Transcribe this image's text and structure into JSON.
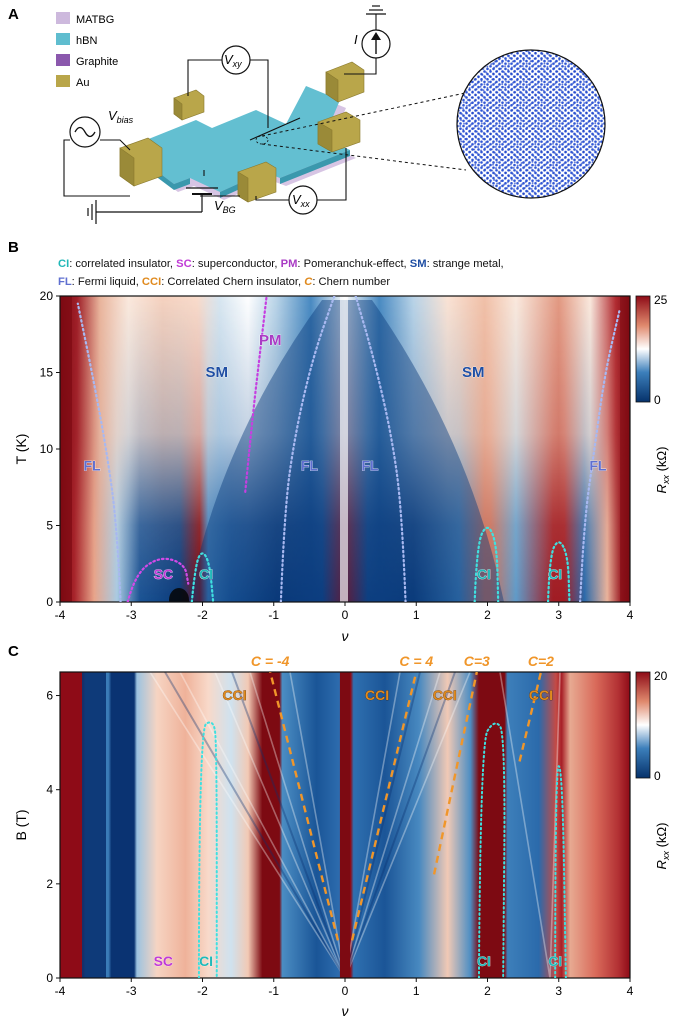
{
  "panels": {
    "a": {
      "label": "A",
      "legend": [
        "MATBG",
        "hBN",
        "Graphite",
        "Au"
      ],
      "legend_colors": [
        "#cdb9dd",
        "#5fbdcf",
        "#8b58ad",
        "#b9a64a"
      ],
      "circuit": {
        "current": "I",
        "vbias": "V",
        "vbias_sub": "bias",
        "vxy": "V",
        "vxy_sub": "xy",
        "vxx": "V",
        "vxx_sub": "xx",
        "vbg": "V",
        "vbg_sub": "BG"
      }
    },
    "b": {
      "label": "B",
      "caption_line1": [
        {
          "t": "CI",
          "c": "#21b8b8",
          "b": true
        },
        {
          "t": ": correlated insulator, ",
          "c": "#111",
          "b": false
        },
        {
          "t": "SC",
          "c": "#c03ad6",
          "b": true
        },
        {
          "t": ": superconductor, ",
          "c": "#111",
          "b": false
        },
        {
          "t": "PM",
          "c": "#a93bc4",
          "b": true
        },
        {
          "t": ": Pomeranchuk-effect, ",
          "c": "#111",
          "b": false
        },
        {
          "t": "SM",
          "c": "#1f4ea3",
          "b": true
        },
        {
          "t": ": strange metal,",
          "c": "#111",
          "b": false
        }
      ],
      "caption_line2": [
        {
          "t": "FL",
          "c": "#5f6fd0",
          "b": true
        },
        {
          "t": ": Fermi liquid, ",
          "c": "#111",
          "b": false
        },
        {
          "t": "CCI",
          "c": "#e08a1e",
          "b": true
        },
        {
          "t": ": Correlated Chern insulator, ",
          "c": "#111",
          "b": false
        },
        {
          "t": "C",
          "c": "#e08a1e",
          "b": true
        },
        {
          "t": ": Chern number",
          "c": "#111",
          "b": false
        }
      ],
      "ylabel": "T (K)",
      "xlabel": "ν",
      "colorbar": {
        "max": "25",
        "min": "0",
        "label": "R",
        "label_sub": "xx",
        "unit": " (kΩ)"
      }
    },
    "c": {
      "label": "C",
      "ylabel": "B (T)",
      "xlabel": "ν",
      "colorbar": {
        "max": "20",
        "min": "0",
        "label": "R",
        "label_sub": "xx",
        "unit": " (kΩ)"
      }
    }
  },
  "chart_data": [
    {
      "type": "heatmap",
      "panel": "B",
      "x": {
        "min": -4,
        "max": 4,
        "ticks": [
          -4,
          -3,
          -2,
          -1,
          0,
          1,
          2,
          3,
          4
        ]
      },
      "y": {
        "min": 0,
        "max": 20,
        "ticks": [
          0,
          5,
          10,
          15,
          20
        ]
      },
      "xlabel": "ν",
      "ylabel": "T (K)",
      "colorscale": {
        "min": 0,
        "max": 25,
        "unit": "kΩ",
        "colors": [
          "#06326b",
          "#3c7fbb",
          "#ffffff",
          "#e08a6e",
          "#8e0b17"
        ]
      },
      "resistive_features": [
        {
          "nu": -4,
          "width": 0.18,
          "max_T": 20,
          "kind": "band insulator"
        },
        {
          "nu": -2,
          "width": 0.1,
          "max_T": 3,
          "kind": "CI"
        },
        {
          "nu": 0,
          "width": 0.04,
          "max_T": 20,
          "kind": "CNP"
        },
        {
          "nu": 2,
          "width": 0.08,
          "max_T": 5,
          "kind": "CI"
        },
        {
          "nu": 3,
          "width": 0.1,
          "max_T": 20,
          "kind": "CI"
        },
        {
          "nu": 4,
          "width": 0.14,
          "max_T": 20,
          "kind": "band insulator"
        }
      ],
      "annotations": [
        {
          "text": "SM",
          "x": -1.8,
          "y": 14.7,
          "color": "#1f4ea3"
        },
        {
          "text": "SM",
          "x": 1.8,
          "y": 14.7,
          "color": "#1f4ea3"
        },
        {
          "text": "PM",
          "x": -1.05,
          "y": 16.8,
          "color": "#a93bc4"
        },
        {
          "text": "FL",
          "x": -3.55,
          "y": 8.6,
          "color": "#5f6fd0"
        },
        {
          "text": "FL",
          "x": -0.5,
          "y": 8.6,
          "color": "#5f6fd0"
        },
        {
          "text": "FL",
          "x": 0.35,
          "y": 8.6,
          "color": "#5f6fd0"
        },
        {
          "text": "FL",
          "x": 3.55,
          "y": 8.6,
          "color": "#5f6fd0"
        },
        {
          "text": "SC",
          "x": -2.55,
          "y": 1.5,
          "color": "#c03ad6"
        },
        {
          "text": "CI",
          "x": -1.95,
          "y": 1.5,
          "color": "#21b8b8"
        },
        {
          "text": "CI",
          "x": 1.95,
          "y": 1.5,
          "color": "#21b8b8"
        },
        {
          "text": "CI",
          "x": 2.95,
          "y": 1.5,
          "color": "#21b8b8"
        }
      ],
      "boundaries": [
        {
          "name": "FL left",
          "points": [
            [
              -3.15,
              0
            ],
            [
              -3.2,
              5
            ],
            [
              -3.35,
              10
            ],
            [
              -3.55,
              15
            ],
            [
              -3.75,
              19.5
            ]
          ]
        },
        {
          "name": "FL inner left",
          "points": [
            [
              -0.9,
              0
            ],
            [
              -0.85,
              6
            ],
            [
              -0.7,
              11
            ],
            [
              -0.45,
              16
            ],
            [
              -0.15,
              20
            ]
          ]
        },
        {
          "name": "FL inner right",
          "points": [
            [
              0.85,
              0
            ],
            [
              0.8,
              6
            ],
            [
              0.65,
              11
            ],
            [
              0.4,
              16
            ],
            [
              0.15,
              20
            ]
          ]
        },
        {
          "name": "FL right",
          "points": [
            [
              3.3,
              0
            ],
            [
              3.35,
              5
            ],
            [
              3.5,
              10
            ],
            [
              3.65,
              15
            ],
            [
              3.85,
              19
            ]
          ]
        },
        {
          "name": "PM",
          "points": [
            [
              -1.4,
              7.2
            ],
            [
              -1.3,
              12
            ],
            [
              -1.2,
              16
            ],
            [
              -1.1,
              20
            ]
          ]
        },
        {
          "name": "SC dome",
          "points": [
            [
              -3.05,
              0
            ],
            [
              -2.95,
              1.8
            ],
            [
              -2.6,
              3
            ],
            [
              -2.25,
              2.5
            ],
            [
              -2.2,
              1.2
            ]
          ]
        },
        {
          "name": "CI -2 dome",
          "points": [
            [
              -2.15,
              0
            ],
            [
              -2.1,
              2.5
            ],
            [
              -2.0,
              3.4
            ],
            [
              -1.9,
              2.5
            ],
            [
              -1.85,
              0
            ]
          ]
        },
        {
          "name": "CI 2 dome",
          "points": [
            [
              1.82,
              0
            ],
            [
              1.85,
              3.8
            ],
            [
              2.0,
              5.2
            ],
            [
              2.13,
              3.8
            ],
            [
              2.15,
              0
            ]
          ]
        },
        {
          "name": "CI 3 dome",
          "points": [
            [
              2.85,
              0
            ],
            [
              2.87,
              3
            ],
            [
              3.0,
              4.2
            ],
            [
              3.13,
              3
            ],
            [
              3.15,
              0
            ]
          ]
        }
      ]
    },
    {
      "type": "heatmap",
      "panel": "C",
      "x": {
        "min": -4,
        "max": 4,
        "ticks": [
          -4,
          -3,
          -2,
          -1,
          0,
          1,
          2,
          3,
          4
        ]
      },
      "y": {
        "min": 0,
        "max": 6.5,
        "ticks": [
          0,
          2,
          4,
          6
        ]
      },
      "xlabel": "ν",
      "ylabel": "B (T)",
      "colorscale": {
        "min": 0,
        "max": 20,
        "unit": "kΩ",
        "colors": [
          "#06326b",
          "#3c7fbb",
          "#ffffff",
          "#e08a6e",
          "#8e0b17"
        ]
      },
      "chern_lines": [
        {
          "label": "C = -4",
          "points": [
            [
              -0.1,
              0.8
            ],
            [
              -1.05,
              6.5
            ]
          ]
        },
        {
          "label": "C = 4",
          "points": [
            [
              0.1,
              0.8
            ],
            [
              1.0,
              6.5
            ]
          ]
        },
        {
          "label": "C=3",
          "points": [
            [
              1.25,
              2.2
            ],
            [
              1.85,
              6.5
            ]
          ]
        },
        {
          "label": "C=2",
          "points": [
            [
              2.45,
              4.6
            ],
            [
              2.75,
              6.5
            ]
          ]
        }
      ],
      "annotations": [
        {
          "text": "CCI",
          "x": -1.55,
          "y": 5.9,
          "color": "#e08a1e"
        },
        {
          "text": "CCI",
          "x": 0.45,
          "y": 5.9,
          "color": "#e08a1e"
        },
        {
          "text": "CCI",
          "x": 1.4,
          "y": 5.9,
          "color": "#e08a1e"
        },
        {
          "text": "CCI",
          "x": 2.75,
          "y": 5.9,
          "color": "#e08a1e"
        },
        {
          "text": "SC",
          "x": -2.55,
          "y": 0.25,
          "color": "#c03ad6"
        },
        {
          "text": "CI",
          "x": -1.95,
          "y": 0.25,
          "color": "#21b8b8"
        },
        {
          "text": "CI",
          "x": 1.95,
          "y": 0.25,
          "color": "#21b8b8"
        },
        {
          "text": "CI",
          "x": 2.95,
          "y": 0.25,
          "color": "#21b8b8"
        }
      ],
      "ci_boundaries": [
        {
          "name": "CI -2",
          "points": [
            [
              -2.05,
              0
            ],
            [
              -2.05,
              5.3
            ],
            [
              -1.85,
              5.5
            ],
            [
              -1.8,
              5.0
            ],
            [
              -1.8,
              0
            ]
          ]
        },
        {
          "name": "CI 2",
          "points": [
            [
              1.88,
              0
            ],
            [
              1.9,
              5.0
            ],
            [
              2.1,
              5.5
            ],
            [
              2.25,
              5.2
            ],
            [
              2.22,
              0
            ]
          ]
        },
        {
          "name": "CI 3",
          "points": [
            [
              2.95,
              0
            ],
            [
              2.95,
              4.5
            ],
            [
              3.05,
              4.5
            ],
            [
              3.1,
              0
            ]
          ]
        }
      ]
    }
  ]
}
